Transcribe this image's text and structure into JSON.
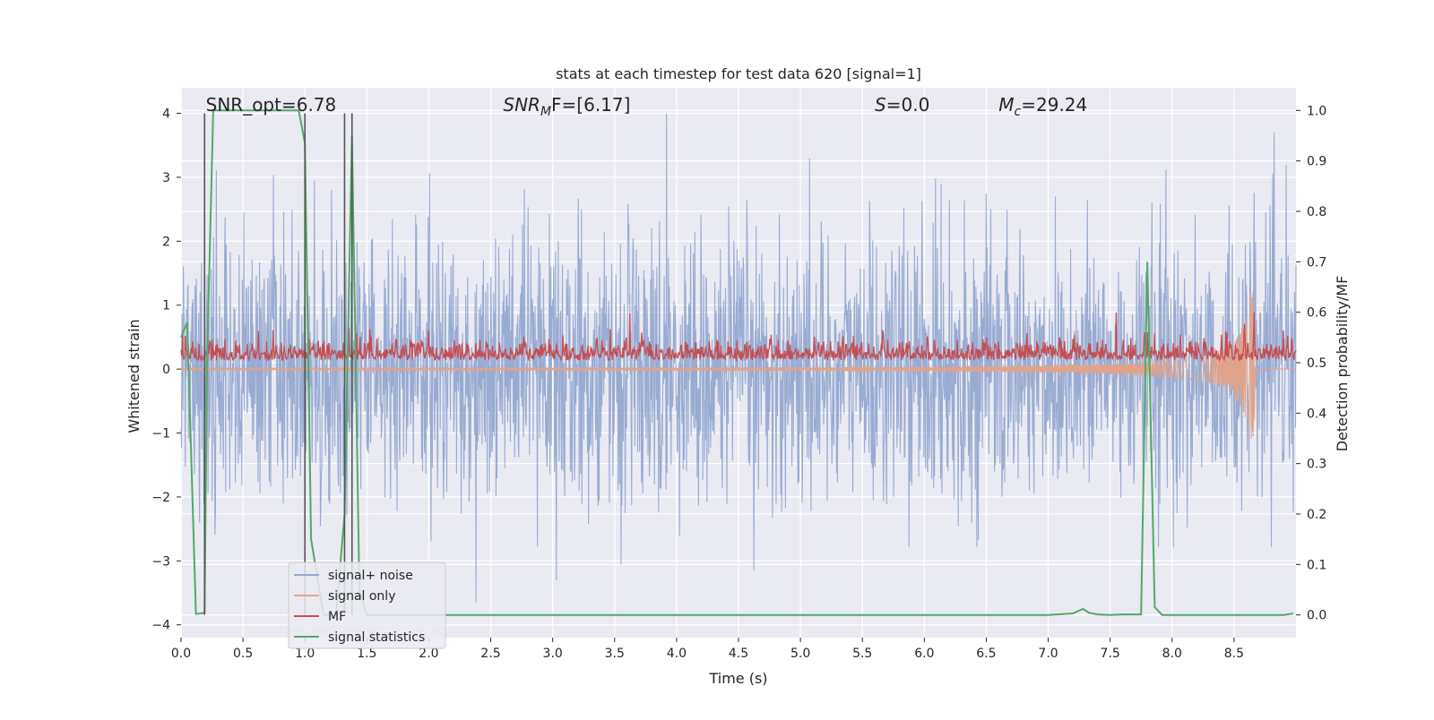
{
  "chart_data": {
    "type": "line",
    "title": "stats at each timestep for test data 620 [signal=1]",
    "xlabel": "Time (s)",
    "ylabel_left": "Whitened strain",
    "ylabel_right": "Detection probability/MF",
    "xlim": [
      0.0,
      9.0
    ],
    "ylim_left": [
      -4.2,
      4.4
    ],
    "ylim_right": [
      -0.045,
      1.045
    ],
    "x_ticks": [
      0.0,
      0.5,
      1.0,
      1.5,
      2.0,
      2.5,
      3.0,
      3.5,
      4.0,
      4.5,
      5.0,
      5.5,
      6.0,
      6.5,
      7.0,
      7.5,
      8.0,
      8.5
    ],
    "x_tick_labels": [
      "0.0",
      "0.5",
      "1.0",
      "1.5",
      "2.0",
      "2.5",
      "3.0",
      "3.5",
      "4.0",
      "4.5",
      "5.0",
      "5.5",
      "6.0",
      "6.5",
      "7.0",
      "7.5",
      "8.0",
      "8.5"
    ],
    "y_left_ticks": [
      4,
      3,
      2,
      1,
      0,
      -1,
      -2,
      -3,
      -4
    ],
    "y_left_tick_labels": [
      "4",
      "3",
      "2",
      "1",
      "0",
      "−1",
      "−2",
      "−3",
      "−4"
    ],
    "y_right_ticks": [
      1.0,
      0.9,
      0.8,
      0.7,
      0.6,
      0.5,
      0.4,
      0.3,
      0.2,
      0.1,
      0.0
    ],
    "y_right_tick_labels": [
      "1.0",
      "0.9",
      "0.8",
      "0.7",
      "0.6",
      "0.5",
      "0.4",
      "0.3",
      "0.2",
      "0.1",
      "0.0"
    ],
    "grid": true,
    "legend_position": "lower-left",
    "annotations": [
      {
        "text": "SNR_opt=6.78",
        "kind": "plain",
        "x": 0.2
      },
      {
        "base": "SNR",
        "sub": "M",
        "rest": "F=[6.17]",
        "kind": "sub",
        "x": 2.6
      },
      {
        "base": "S",
        "sub": "",
        "rest": "=0.0",
        "kind": "italic",
        "x": 5.6
      },
      {
        "base": "M",
        "sub": "c",
        "rest": "=29.24",
        "kind": "sub",
        "x": 6.6
      }
    ],
    "vertical_markers_x": [
      0.19,
      1.0,
      1.32,
      1.38
    ],
    "series": [
      {
        "name": "signal+ noise",
        "color": "#95a8d0",
        "axis": "left",
        "description": "whitened strain noise, roughly within -2.8..3.5 with peak 4.0 at 3.92 s"
      },
      {
        "name": "signal only",
        "color": "#e1a48a",
        "axis": "left",
        "x": [
          0.0,
          1.0,
          2.0,
          3.0,
          4.0,
          5.0,
          6.0,
          7.0,
          7.5,
          8.0,
          8.3,
          8.5,
          8.6,
          8.65,
          8.68
        ],
        "amplitude": [
          0.01,
          0.01,
          0.015,
          0.02,
          0.025,
          0.03,
          0.04,
          0.06,
          0.08,
          0.14,
          0.22,
          0.4,
          0.8,
          1.5,
          0.0
        ]
      },
      {
        "name": "MF",
        "color": "#c44e52",
        "axis": "right",
        "description": "matched filter output fluctuating between about 0.48 and 0.55, spike to 0.60 at 7.55 s and 0.60 near 8.65 s"
      },
      {
        "name": "signal statistics",
        "color": "#55a868",
        "axis": "right",
        "x": [
          0.0,
          0.05,
          0.12,
          0.19,
          0.21,
          0.26,
          0.3,
          0.5,
          0.7,
          0.95,
          1.0,
          1.05,
          1.15,
          1.25,
          1.32,
          1.38,
          1.44,
          1.5,
          2.0,
          3.0,
          4.0,
          5.0,
          6.0,
          7.0,
          7.2,
          7.28,
          7.33,
          7.4,
          7.5,
          7.6,
          7.75,
          7.8,
          7.86,
          7.92,
          8.0,
          8.5,
          8.9,
          8.98
        ],
        "values": [
          0.55,
          0.58,
          0.002,
          0.004,
          0.5,
          1.0,
          1.0,
          1.0,
          1.0,
          1.0,
          0.935,
          0.15,
          0.0,
          0.0,
          0.2,
          0.95,
          0.05,
          0.0,
          0.0,
          0.0,
          0.0,
          0.0,
          0.0,
          0.0,
          0.003,
          0.012,
          0.004,
          0.001,
          0.0,
          0.001,
          0.001,
          0.7,
          0.015,
          0.0,
          0.0,
          0.0,
          0.0,
          0.003
        ]
      }
    ]
  }
}
